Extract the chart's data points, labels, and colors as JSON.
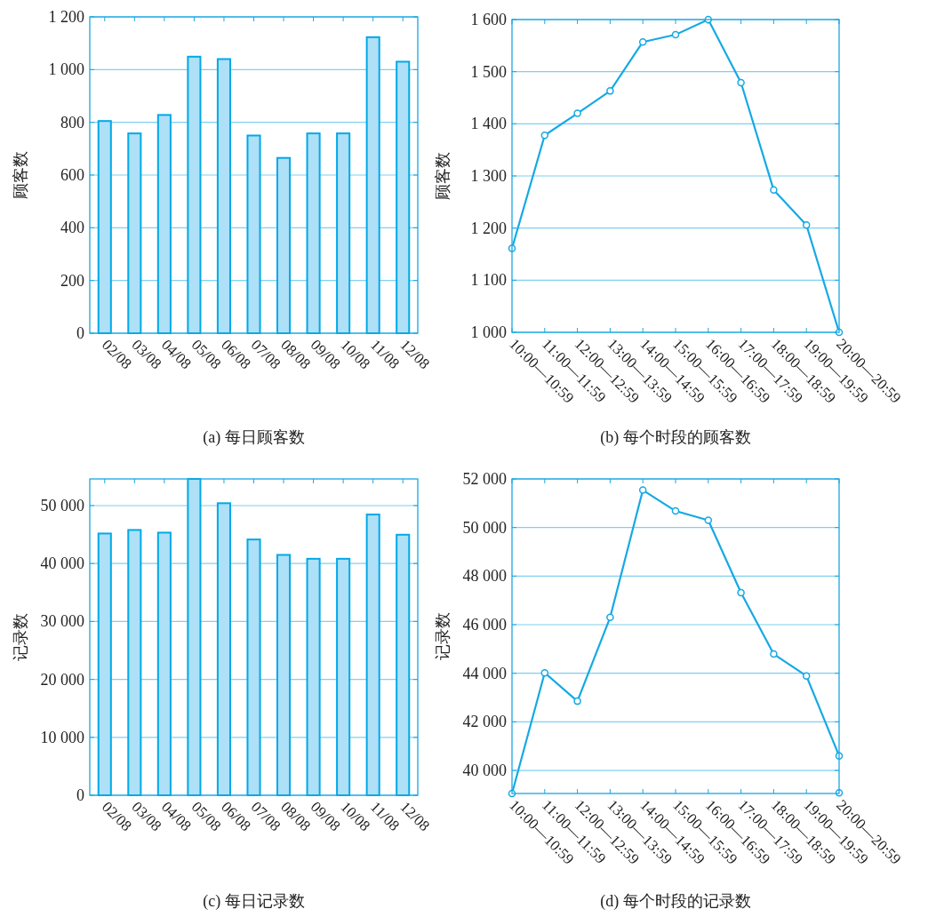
{
  "chart_data": [
    {
      "type": "bar",
      "title": "(a) 每日顾客数",
      "ylabel": "顾客数",
      "categories": [
        "02/08",
        "03/08",
        "04/08",
        "05/08",
        "06/08",
        "07/08",
        "08/08",
        "09/08",
        "10/08",
        "11/08",
        "12/08"
      ],
      "series": [
        {
          "color": "#aee0f7",
          "values": [
            805,
            758,
            828,
            1049,
            1040,
            750,
            665,
            758,
            758,
            1123,
            1030
          ]
        }
      ],
      "ylim": [
        0,
        1200
      ],
      "yticks": [
        0,
        200,
        400,
        600,
        800,
        {
          "value": 1000,
          "label": "1 000"
        },
        {
          "value": 1200,
          "label": "1 200"
        }
      ],
      "grid": "y"
    },
    {
      "type": "line",
      "title": "(b) 每个时段的顾客数",
      "ylabel": "顾客数",
      "categories": [
        "10:00—10:59",
        "11:00—11:59",
        "12:00—12:59",
        "13:00—13:59",
        "14:00—14:59",
        "15:00—15:59",
        "16:00—16:59",
        "17:00—17:59",
        "18:00—18:59",
        "19:00—19:59",
        "20:00—20:59"
      ],
      "series": [
        {
          "color": "#16a9e4",
          "values": [
            1161,
            1378,
            1420,
            1463,
            1557,
            1571,
            1600,
            1479,
            1273,
            1206,
            1000
          ]
        }
      ],
      "ylim": [
        1000,
        1600
      ],
      "yticks": [
        {
          "value": 1000,
          "label": "1 000"
        },
        {
          "value": 1100,
          "label": "1 100"
        },
        {
          "value": 1200,
          "label": "1 200"
        },
        {
          "value": 1300,
          "label": "1 300"
        },
        {
          "value": 1400,
          "label": "1 400"
        },
        {
          "value": 1500,
          "label": "1 500"
        },
        {
          "value": 1600,
          "label": "1 600"
        }
      ],
      "grid": "y",
      "marker": "circle"
    },
    {
      "type": "bar",
      "title": "(c) 每日记录数",
      "ylabel": "记录数",
      "categories": [
        "02/08",
        "03/08",
        "04/08",
        "05/08",
        "06/08",
        "07/08",
        "08/08",
        "09/08",
        "10/08",
        "11/08",
        "12/08"
      ],
      "series": [
        {
          "color": "#aee0f7",
          "values": [
            45180,
            45790,
            45330,
            54600,
            50410,
            44150,
            41490,
            40820,
            40820,
            48460,
            44970
          ]
        }
      ],
      "ylim": [
        0,
        54600
      ],
      "yticks": [
        0,
        {
          "value": 10000,
          "label": "10 000"
        },
        {
          "value": 20000,
          "label": "20 000"
        },
        {
          "value": 30000,
          "label": "30 000"
        },
        {
          "value": 40000,
          "label": "40 000"
        },
        {
          "value": 50000,
          "label": "50 000"
        }
      ],
      "grid": "y"
    },
    {
      "type": "line",
      "title": "(d) 每个时段的记录数",
      "ylabel": "记录数",
      "categories": [
        "10:00—10:59",
        "11:00—11:59",
        "12:00—12:59",
        "13:00—13:59",
        "14:00—14:59",
        "15:00—15:59",
        "16:00—16:59",
        "17:00—17:59",
        "18:00—18:59",
        "19:00—19:59",
        "20:00—20:59"
      ],
      "series": [
        {
          "color": "#16a9e4",
          "values": [
            39050,
            44020,
            42850,
            46300,
            51540,
            50680,
            50300,
            47320,
            44790,
            43890,
            40600
          ]
        },
        {
          "type": "scatter",
          "color": "#16a9e4",
          "values": [
            null,
            null,
            null,
            null,
            null,
            null,
            null,
            null,
            null,
            null,
            39080
          ]
        }
      ],
      "ylim": [
        39050,
        52000
      ],
      "yticks": [
        {
          "value": 40000,
          "label": "40 000"
        },
        {
          "value": 42000,
          "label": "42 000"
        },
        {
          "value": 44000,
          "label": "44 000"
        },
        {
          "value": 46000,
          "label": "46 000"
        },
        {
          "value": 48000,
          "label": "48 000"
        },
        {
          "value": 50000,
          "label": "50 000"
        },
        {
          "value": 52000,
          "label": "52 000"
        }
      ],
      "grid": "y",
      "marker": "circle"
    }
  ]
}
